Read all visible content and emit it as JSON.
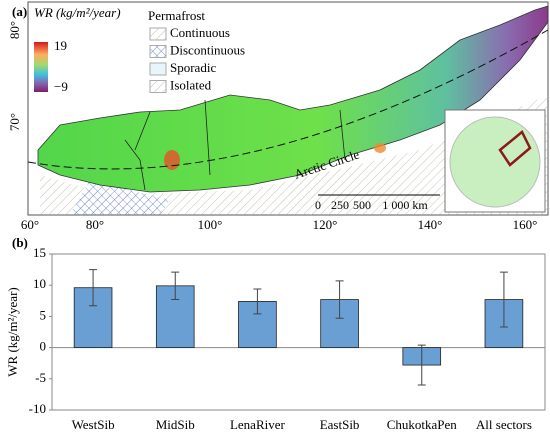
{
  "map": {
    "panel_label": "(a)",
    "colorbar_title": "WR (kg/m²/year)",
    "colorbar_max": "19",
    "colorbar_min": "−9",
    "legend_title": "Permafrost",
    "legend_items": [
      "Continuous",
      "Discontinuous",
      "Sporadic",
      "Isolated"
    ],
    "circle_label": "Arctic Circle",
    "scale_labels": [
      "0",
      "250",
      "500",
      "1 000 km"
    ],
    "lat_labels": [
      "80°",
      "70°"
    ],
    "lon_labels": [
      "60°",
      "80°",
      "100°",
      "120°",
      "140°",
      "160°"
    ]
  },
  "chart_data": {
    "type": "bar",
    "panel_label": "(b)",
    "y_label": "WR (kg/m²/year)",
    "categories": [
      "WestSib",
      "MidSib",
      "LenaRiver",
      "EastSib",
      "ChukotkaPen",
      "All sectors"
    ],
    "values": [
      9.6,
      9.9,
      7.4,
      7.7,
      -2.8,
      7.7
    ],
    "errors": [
      2.9,
      2.2,
      2.0,
      3.0,
      3.2,
      4.4
    ],
    "color": "#6a9fd3",
    "ylim": [
      -10,
      15
    ],
    "yticks": [
      -10,
      -5,
      0,
      5,
      10,
      15
    ]
  }
}
